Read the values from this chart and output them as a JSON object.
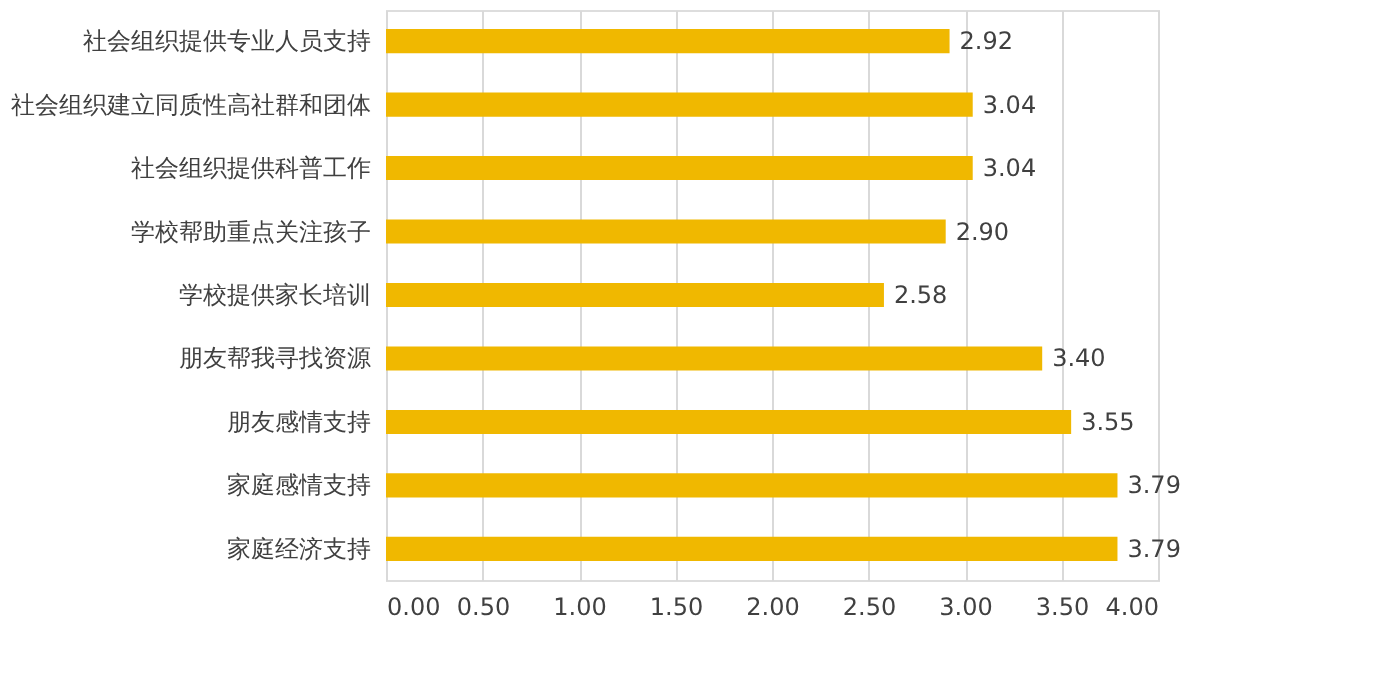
{
  "chart_data": {
    "type": "bar",
    "orientation": "horizontal",
    "categories": [
      "社会组织提供专业人员支持",
      "社会组织建立同质性高社群和团体",
      "社会组织提供科普工作",
      "学校帮助重点关注孩子",
      "学校提供家长培训",
      "朋友帮我寻找资源",
      "朋友感情支持",
      "家庭感情支持",
      "家庭经济支持"
    ],
    "values": [
      2.92,
      3.04,
      3.04,
      2.9,
      2.58,
      3.4,
      3.55,
      3.79,
      3.79
    ],
    "value_labels": [
      "2.92",
      "3.04",
      "3.04",
      "2.90",
      "2.58",
      "3.40",
      "3.55",
      "3.79",
      "3.79"
    ],
    "color": "#f0b800",
    "xlim": [
      0,
      4
    ],
    "xticks": [
      {
        "value": 0,
        "label": "0.00"
      },
      {
        "value": 0.5,
        "label": "0.50"
      },
      {
        "value": 1,
        "label": "1.00"
      },
      {
        "value": 1.5,
        "label": "1.50"
      },
      {
        "value": 2,
        "label": "2.00"
      },
      {
        "value": 2.5,
        "label": "2.50"
      },
      {
        "value": 3,
        "label": "3.00"
      },
      {
        "value": 3.5,
        "label": "3.50"
      },
      {
        "value": 4,
        "label": "4.00"
      }
    ],
    "grid": "x"
  }
}
